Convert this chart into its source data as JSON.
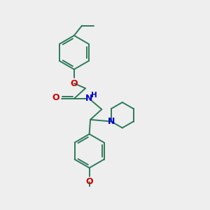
{
  "bg_color": "#eeeeee",
  "bond_color": "#2d7a5a",
  "N_color": "#0000cc",
  "O_color": "#cc0000",
  "lw": 1.4,
  "figsize": [
    3.0,
    3.0
  ],
  "dpi": 100,
  "xlim": [
    0,
    10
  ],
  "ylim": [
    0,
    10
  ]
}
